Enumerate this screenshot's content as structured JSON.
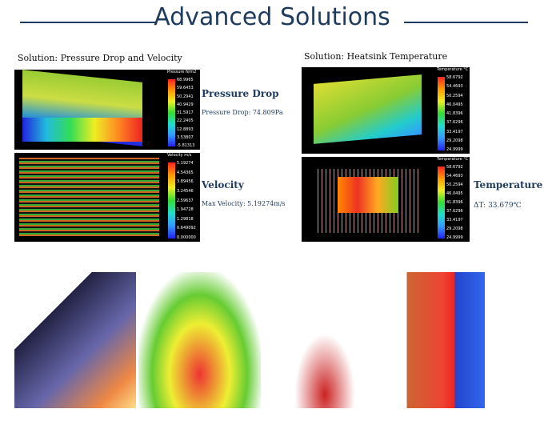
{
  "title": "Advanced Solutions",
  "left": {
    "heading": "Solution: Pressure Drop and Velocity",
    "pressure": {
      "legend_title": "Pressure N/m2",
      "values": [
        "68.9965",
        "59.6453",
        "50.2941",
        "40.9429",
        "31.5917",
        "22.2405",
        "12.8893",
        "3.53807",
        "-5.81313"
      ],
      "label": "Pressure Drop",
      "note": "Pressure Drop: 74.809Pa"
    },
    "velocity": {
      "legend_title": "Velocity m/s",
      "values": [
        "5.19274",
        "4.54365",
        "3.89456",
        "3.24546",
        "2.59637",
        "1.94728",
        "1.29818",
        "0.649092",
        "0.000000"
      ],
      "label": "Velocity",
      "note": "Max Velocity: 5.19274m/s"
    }
  },
  "right": {
    "heading": "Solution: Heatsink Temperature",
    "temp1": {
      "legend_title": "Temperature °C",
      "values": [
        "58.6792",
        "54.4693",
        "50.2594",
        "46.0495",
        "41.8396",
        "37.6296",
        "33.4197",
        "29.2098",
        "24.9999"
      ]
    },
    "temp2": {
      "legend_title": "Temperature °C",
      "values": [
        "58.6792",
        "54.4693",
        "50.2594",
        "46.0495",
        "41.8396",
        "37.6296",
        "33.4197",
        "29.2098",
        "24.9999"
      ],
      "label": "Temperature",
      "note": "ΔT: 33.679℃"
    }
  }
}
